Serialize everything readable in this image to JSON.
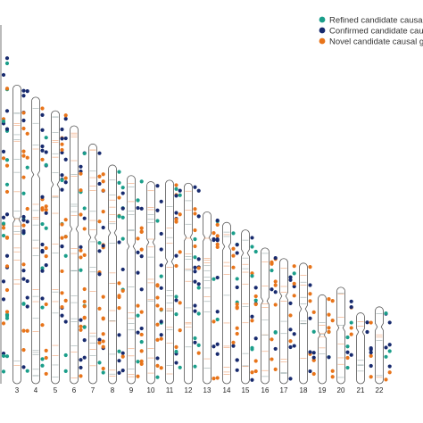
{
  "colors": {
    "refined": "#1a9e8a",
    "confirmed": "#172a6e",
    "novel": "#e8741a",
    "chromosome_outline": "#555555",
    "band_line": "#f0a070"
  },
  "legend": [
    {
      "key": "refined",
      "label": "Refined candidate causal ge"
    },
    {
      "key": "confirmed",
      "label": "Confirmed candidate causal"
    },
    {
      "key": "novel",
      "label": "Novel candidate causal ge"
    }
  ],
  "chromosomes": [
    {
      "label": "3",
      "size": 198
    },
    {
      "label": "4",
      "size": 190
    },
    {
      "label": "5",
      "size": 181
    },
    {
      "label": "6",
      "size": 171
    },
    {
      "label": "7",
      "size": 159
    },
    {
      "label": "8",
      "size": 145
    },
    {
      "label": "9",
      "size": 138
    },
    {
      "label": "10",
      "size": 134
    },
    {
      "label": "11",
      "size": 135
    },
    {
      "label": "12",
      "size": 133
    },
    {
      "label": "13",
      "size": 114
    },
    {
      "label": "14",
      "size": 107
    },
    {
      "label": "15",
      "size": 102
    },
    {
      "label": "16",
      "size": 90
    },
    {
      "label": "17",
      "size": 83
    },
    {
      "label": "18",
      "size": 80
    },
    {
      "label": "19",
      "size": 59
    },
    {
      "label": "20",
      "size": 64
    },
    {
      "label": "21",
      "size": 47
    },
    {
      "label": "22",
      "size": 51
    }
  ]
}
